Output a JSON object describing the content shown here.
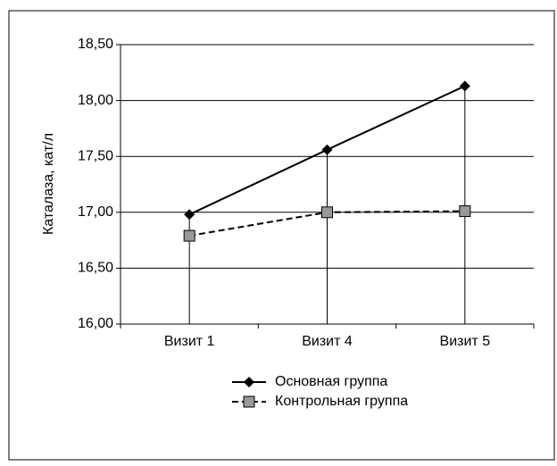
{
  "chart_data": {
    "type": "line",
    "y_label": "Каталаза, кат/л",
    "categories": [
      "Визит 1",
      "Визит 4",
      "Визит 5"
    ],
    "series": [
      {
        "name": "Основная группа",
        "color": "#000000",
        "marker": "diamond",
        "dash": "solid",
        "values": [
          16.98,
          17.56,
          18.13
        ]
      },
      {
        "name": "Контрольная группа",
        "color": "#000000",
        "marker": "square",
        "dash": "dashed",
        "values": [
          16.79,
          17.0,
          17.01
        ]
      }
    ],
    "ylim": [
      16.0,
      18.5
    ],
    "yticks": [
      {
        "value": 16.0,
        "label": "16,00"
      },
      {
        "value": 16.5,
        "label": "16,50"
      },
      {
        "value": 17.0,
        "label": "17,00"
      },
      {
        "value": 17.5,
        "label": "17,50"
      },
      {
        "value": 18.0,
        "label": "18,00"
      },
      {
        "value": 18.5,
        "label": "18,50"
      }
    ],
    "grid": true,
    "legend": "bottom"
  }
}
